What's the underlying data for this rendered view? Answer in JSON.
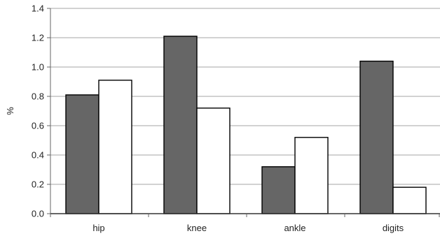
{
  "chart_data": {
    "type": "bar",
    "title": "",
    "xlabel": "",
    "ylabel": "%",
    "ylim": [
      0,
      1.4
    ],
    "yticks": [
      0.0,
      0.2,
      0.4,
      0.6,
      0.8,
      1.0,
      1.2,
      1.4
    ],
    "ytick_labels": [
      "0.0",
      "0.2",
      "0.4",
      "0.6",
      "0.8",
      "1.0",
      "1.2",
      "1.4"
    ],
    "grid": "horizontal",
    "legend": "none",
    "categories": [
      "hip",
      "knee",
      "ankle",
      "digits"
    ],
    "series": [
      {
        "values": [
          0.81,
          1.21,
          0.32,
          1.04
        ],
        "color": "#666666"
      },
      {
        "values": [
          0.91,
          0.72,
          0.52,
          0.18
        ],
        "color": "#ffffff"
      }
    ]
  }
}
